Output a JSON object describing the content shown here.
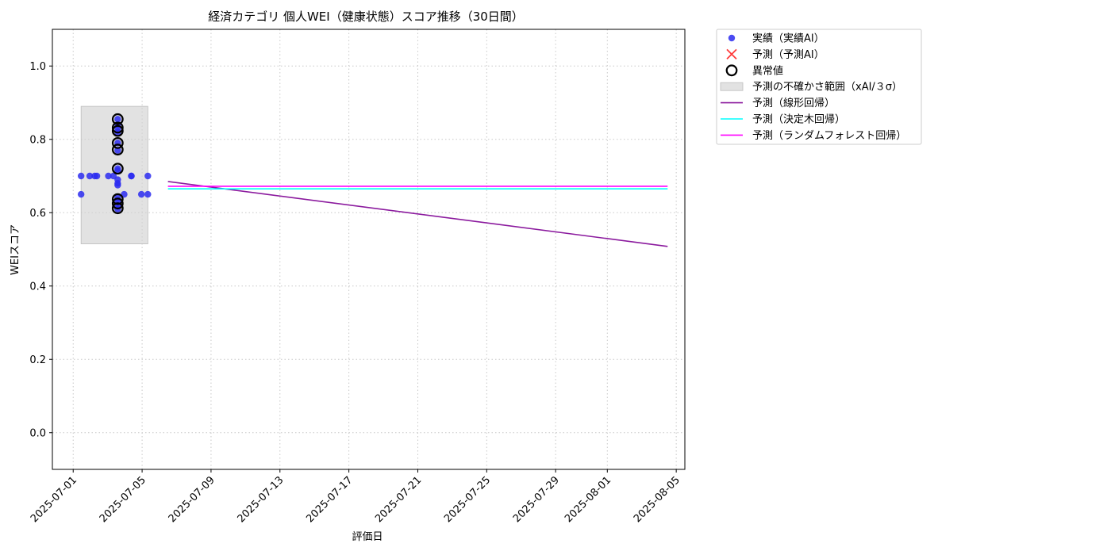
{
  "chart_data": {
    "type": "scatter",
    "title": "経済カテゴリ 個人WEI（健康状態）スコア推移（30日間）",
    "xlabel": "評価日",
    "ylabel": "WEIスコア",
    "ylim": [
      -0.1,
      1.1
    ],
    "xlim": [
      "2025-06-29T19:00",
      "2025-08-05T12:00"
    ],
    "y_ticks": [
      0.0,
      0.2,
      0.4,
      0.6,
      0.8,
      1.0
    ],
    "y_tick_labels": [
      "0.0",
      "0.2",
      "0.4",
      "0.6",
      "0.8",
      "1.0"
    ],
    "x_ticks": [
      "2025-07-01",
      "2025-07-05",
      "2025-07-09",
      "2025-07-13",
      "2025-07-17",
      "2025-07-21",
      "2025-07-25",
      "2025-07-29",
      "2025-08-01",
      "2025-08-05"
    ],
    "grid": true,
    "legend_position": "outside top-right",
    "series": [
      {
        "name": "実績（実績AI）",
        "kind": "scatter",
        "color": "#2b2bf0",
        "points": [
          {
            "x": "2025-07-01T11:00",
            "y": 0.7
          },
          {
            "x": "2025-07-01T11:00",
            "y": 0.65
          },
          {
            "x": "2025-07-01T23:00",
            "y": 0.7
          },
          {
            "x": "2025-07-02T06:00",
            "y": 0.7
          },
          {
            "x": "2025-07-02T09:00",
            "y": 0.7
          },
          {
            "x": "2025-07-03T01:00",
            "y": 0.7
          },
          {
            "x": "2025-07-03T08:00",
            "y": 0.7
          },
          {
            "x": "2025-07-03T14:00",
            "y": 0.855
          },
          {
            "x": "2025-07-03T14:00",
            "y": 0.84
          },
          {
            "x": "2025-07-03T14:00",
            "y": 0.83
          },
          {
            "x": "2025-07-03T14:00",
            "y": 0.82
          },
          {
            "x": "2025-07-03T14:00",
            "y": 0.79
          },
          {
            "x": "2025-07-03T14:00",
            "y": 0.77
          },
          {
            "x": "2025-07-03T14:00",
            "y": 0.72
          },
          {
            "x": "2025-07-03T14:00",
            "y": 0.715
          },
          {
            "x": "2025-07-03T14:00",
            "y": 0.69
          },
          {
            "x": "2025-07-03T14:00",
            "y": 0.68
          },
          {
            "x": "2025-07-03T14:00",
            "y": 0.675
          },
          {
            "x": "2025-07-03T14:00",
            "y": 0.64
          },
          {
            "x": "2025-07-03T14:00",
            "y": 0.63
          },
          {
            "x": "2025-07-03T14:00",
            "y": 0.62
          },
          {
            "x": "2025-07-03T14:00",
            "y": 0.61
          },
          {
            "x": "2025-07-03T23:00",
            "y": 0.65
          },
          {
            "x": "2025-07-04T09:00",
            "y": 0.7
          },
          {
            "x": "2025-07-04T09:00",
            "y": 0.7
          },
          {
            "x": "2025-07-04T23:00",
            "y": 0.65
          },
          {
            "x": "2025-07-05T08:00",
            "y": 0.7
          },
          {
            "x": "2025-07-05T08:00",
            "y": 0.65
          }
        ]
      },
      {
        "name": "予測（予測AI）",
        "kind": "marker",
        "color": "#ff3b3b",
        "points": []
      },
      {
        "name": "異常値",
        "kind": "outlier",
        "color": "#000000",
        "points": [
          {
            "x": "2025-07-03T14:00",
            "y": 0.855
          },
          {
            "x": "2025-07-03T14:00",
            "y": 0.832
          },
          {
            "x": "2025-07-03T14:00",
            "y": 0.823
          },
          {
            "x": "2025-07-03T14:00",
            "y": 0.79
          },
          {
            "x": "2025-07-03T14:00",
            "y": 0.772
          },
          {
            "x": "2025-07-03T14:00",
            "y": 0.72
          },
          {
            "x": "2025-07-03T14:00",
            "y": 0.637
          },
          {
            "x": "2025-07-03T14:00",
            "y": 0.625
          },
          {
            "x": "2025-07-03T14:00",
            "y": 0.612
          }
        ]
      },
      {
        "name": "予測の不確かさ範囲（xAI/３σ）",
        "kind": "band",
        "color": "#d3d3d3",
        "x0": "2025-07-01T11:00",
        "x1": "2025-07-05T08:00",
        "y0": 0.515,
        "y1": 0.89
      },
      {
        "name": "予測（線形回帰）",
        "kind": "line",
        "color": "#8b1a9e",
        "points": [
          {
            "x": "2025-07-06T12:00",
            "y": 0.685
          },
          {
            "x": "2025-08-04T12:00",
            "y": 0.508
          }
        ]
      },
      {
        "name": "予測（決定木回帰）",
        "kind": "line",
        "color": "#00ffff",
        "points": [
          {
            "x": "2025-07-06T12:00",
            "y": 0.665
          },
          {
            "x": "2025-08-04T12:00",
            "y": 0.665
          }
        ]
      },
      {
        "name": "予測（ランダムフォレスト回帰）",
        "kind": "line",
        "color": "#ff00ff",
        "points": [
          {
            "x": "2025-07-06T12:00",
            "y": 0.672
          },
          {
            "x": "2025-08-04T12:00",
            "y": 0.672
          }
        ]
      }
    ]
  }
}
